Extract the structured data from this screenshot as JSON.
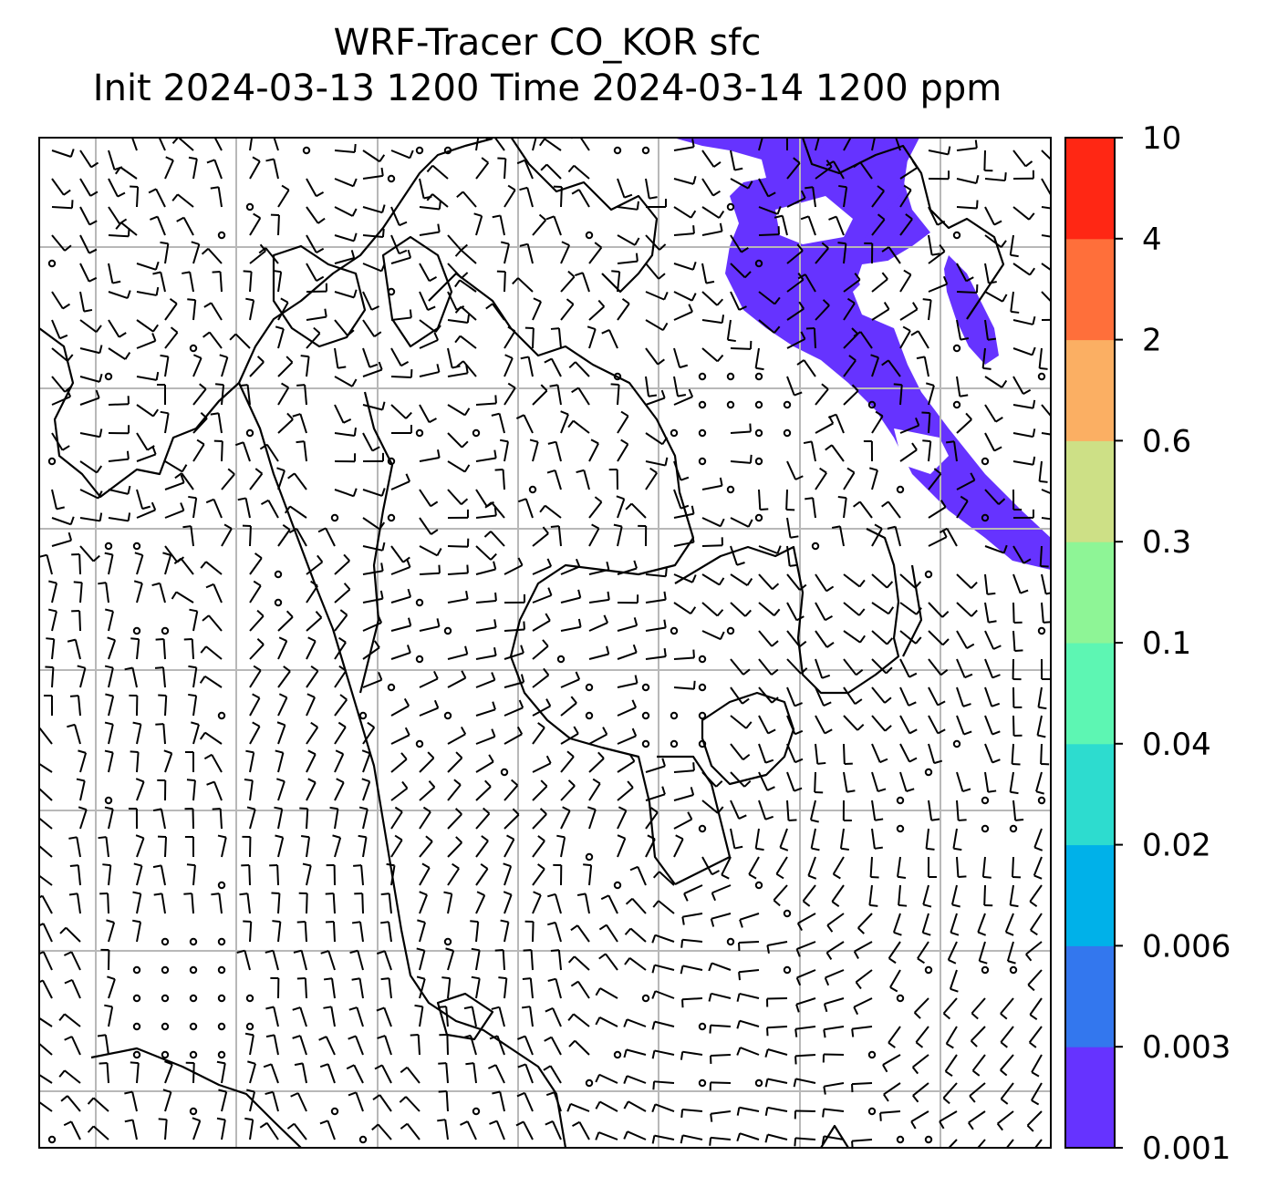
{
  "title": {
    "line1": "WRF-Tracer CO_KOR sfc",
    "line2": "Init 2024-03-13 1200 Time 2024-03-14 1200 ppm"
  },
  "colorbar": {
    "ticks": [
      "0.001",
      "0.003",
      "0.006",
      "0.02",
      "0.04",
      "0.1",
      "0.3",
      "0.6",
      "2",
      "4",
      "10"
    ],
    "colors": [
      "#6633ff",
      "#3377ee",
      "#00b1e9",
      "#2ddccf",
      "#5df6b3",
      "#8ef596",
      "#cde086",
      "#fbaf63",
      "#ff6f3a",
      "#ff2714"
    ]
  },
  "map": {
    "plume_color": "#6633ff",
    "plume_level": "0.001",
    "grid": "on"
  }
}
